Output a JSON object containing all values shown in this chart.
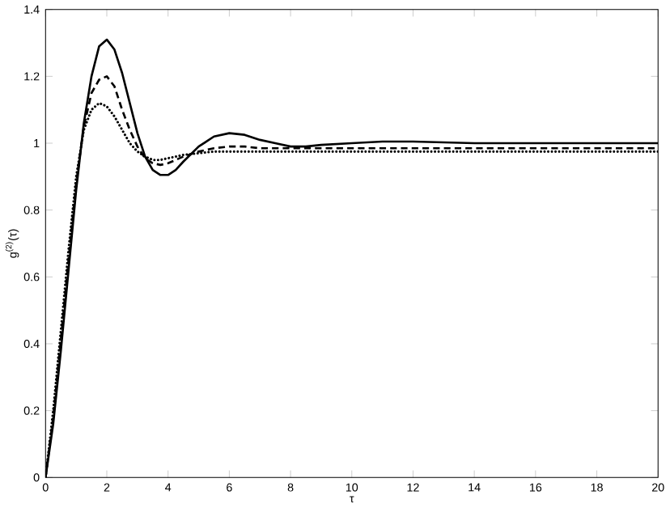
{
  "chart_data": {
    "type": "line",
    "xlabel": "τ",
    "ylabel": "g$^{(2)}$(τ)",
    "x": [
      0,
      0.25,
      0.5,
      0.75,
      1,
      1.25,
      1.5,
      1.75,
      2,
      2.25,
      2.5,
      2.75,
      3,
      3.25,
      3.5,
      3.75,
      4,
      4.25,
      4.5,
      5,
      5.5,
      6,
      6.5,
      7,
      7.5,
      8,
      8.5,
      9,
      10,
      11,
      12,
      14,
      16,
      18,
      20
    ],
    "series": [
      {
        "color": "#000000",
        "line_style": "solid",
        "values": [
          0,
          0.16,
          0.38,
          0.62,
          0.86,
          1.06,
          1.2,
          1.29,
          1.31,
          1.28,
          1.21,
          1.12,
          1.03,
          0.96,
          0.92,
          0.905,
          0.905,
          0.92,
          0.945,
          0.99,
          1.02,
          1.03,
          1.025,
          1.01,
          1.0,
          0.99,
          0.99,
          0.995,
          1.0,
          1.005,
          1.005,
          1.0,
          1.0,
          1.0,
          1.0
        ]
      },
      {
        "color": "#000000",
        "line_style": "dotted",
        "values": [
          0,
          0.2,
          0.44,
          0.68,
          0.9,
          1.04,
          1.1,
          1.12,
          1.11,
          1.08,
          1.04,
          1.0,
          0.975,
          0.96,
          0.95,
          0.95,
          0.955,
          0.96,
          0.965,
          0.97,
          0.975,
          0.975,
          0.975,
          0.975,
          0.975,
          0.975,
          0.975,
          0.975,
          0.975,
          0.975,
          0.975,
          0.975,
          0.975,
          0.975,
          0.975
        ]
      },
      {
        "color": "#000000",
        "line_style": "dashed",
        "values": [
          0,
          0.18,
          0.41,
          0.65,
          0.88,
          1.05,
          1.15,
          1.19,
          1.2,
          1.17,
          1.1,
          1.04,
          0.99,
          0.955,
          0.94,
          0.935,
          0.94,
          0.95,
          0.96,
          0.975,
          0.985,
          0.99,
          0.99,
          0.985,
          0.985,
          0.985,
          0.985,
          0.985,
          0.985,
          0.985,
          0.985,
          0.985,
          0.985,
          0.985,
          0.985
        ]
      }
    ],
    "xlim": [
      0,
      20
    ],
    "xticks": [
      0,
      2,
      4,
      6,
      8,
      10,
      12,
      14,
      16,
      18,
      20
    ],
    "ylim": [
      0,
      1.4
    ],
    "yticks": [
      0,
      0.2,
      0.4,
      0.6,
      0.8,
      1,
      1.2,
      1.4
    ],
    "grid": false,
    "marker": "none"
  }
}
